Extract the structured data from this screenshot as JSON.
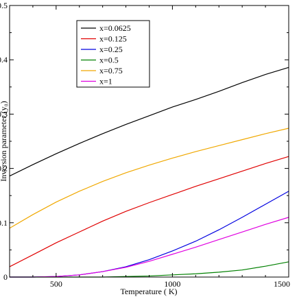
{
  "chart_data": {
    "type": "line",
    "title": "",
    "xlabel": "Temperature ( K)",
    "ylabel": "Inversion parameter (y₀)",
    "xlim": [
      300,
      1500
    ],
    "ylim": [
      0,
      0.5
    ],
    "xticks": [
      500,
      1000,
      1500
    ],
    "yticks": [
      0,
      0.1,
      0.2,
      0.3,
      0.4,
      0.5
    ],
    "xtick_labels": [
      "500",
      "1000",
      "1500"
    ],
    "ytick_labels": [
      "0",
      "0.1",
      "0.2",
      "0.3",
      "0.4",
      "0.5"
    ],
    "grid": false,
    "legend_position": "top-left",
    "x": [
      300,
      400,
      500,
      600,
      700,
      800,
      900,
      1000,
      1100,
      1200,
      1300,
      1400,
      1500
    ],
    "series": [
      {
        "name": "x=0.0625",
        "color": "#000000",
        "values": [
          0.186,
          0.207,
          0.227,
          0.246,
          0.264,
          0.281,
          0.297,
          0.313,
          0.327,
          0.342,
          0.358,
          0.373,
          0.386
        ]
      },
      {
        "name": "x=0.125",
        "color": "#e00000",
        "values": [
          0.019,
          0.041,
          0.063,
          0.083,
          0.103,
          0.121,
          0.137,
          0.152,
          0.167,
          0.181,
          0.195,
          0.209,
          0.222
        ]
      },
      {
        "name": "x=0.25",
        "color": "#0000e0",
        "values": [
          0.0,
          0.0,
          0.001,
          0.004,
          0.01,
          0.019,
          0.032,
          0.048,
          0.066,
          0.087,
          0.11,
          0.134,
          0.158
        ]
      },
      {
        "name": "x=0.5",
        "color": "#008000",
        "values": [
          0.0,
          0.0,
          0.0,
          0.0,
          0.0,
          0.001,
          0.002,
          0.004,
          0.006,
          0.009,
          0.013,
          0.02,
          0.028
        ]
      },
      {
        "name": "x=0.75",
        "color": "#f0a800",
        "values": [
          0.09,
          0.115,
          0.138,
          0.158,
          0.176,
          0.192,
          0.206,
          0.219,
          0.231,
          0.242,
          0.253,
          0.264,
          0.274
        ]
      },
      {
        "name": "x=1",
        "color": "#e000e0",
        "values": [
          0.0,
          0.0,
          0.001,
          0.004,
          0.01,
          0.018,
          0.029,
          0.042,
          0.055,
          0.069,
          0.083,
          0.097,
          0.11
        ]
      }
    ]
  }
}
